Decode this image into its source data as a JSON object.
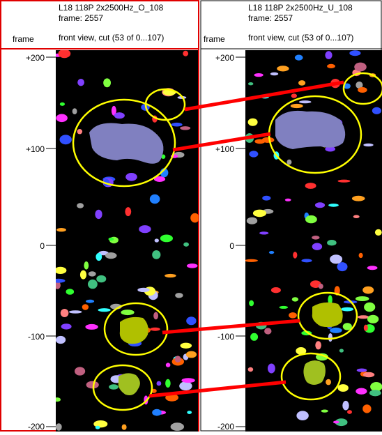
{
  "panels": [
    {
      "frame_label": "frame",
      "title": "L18 118P 2x2500Hz_O_108",
      "frame_line": "frame: 2557",
      "view": "front view, cut (53 of 0...107)"
    },
    {
      "frame_label": "frame",
      "title": "L18 118P 2x2500Hz_U_108",
      "frame_line": "frame: 2557",
      "view": "front view, cut (53 of 0...107)"
    }
  ],
  "axis_labels": [
    "+200",
    "+100",
    "0",
    "-100",
    "-200"
  ]
}
